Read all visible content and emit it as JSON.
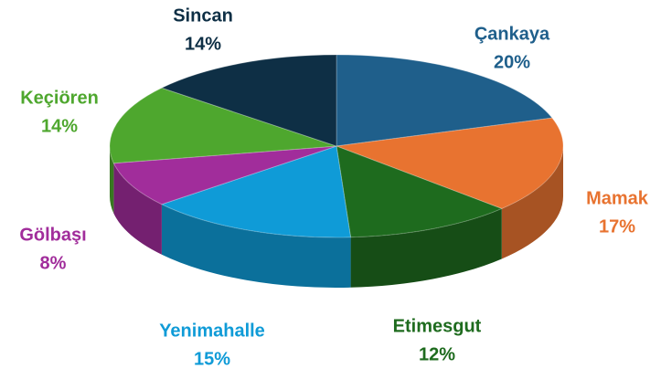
{
  "chart_data": {
    "type": "pie",
    "categories": [
      "Çankaya",
      "Mamak",
      "Etimesgut",
      "Yenimahalle",
      "Gölbaşı",
      "Keçiören",
      "Sincan"
    ],
    "values": [
      20,
      17,
      12,
      15,
      8,
      14,
      14
    ],
    "value_labels": [
      "20%",
      "17%",
      "12%",
      "15%",
      "8%",
      "14%",
      "14%"
    ],
    "colors": [
      "#1f5f8b",
      "#e87330",
      "#1e6b1e",
      "#0f9bd7",
      "#a12d9b",
      "#4ea72e",
      "#0e2f45"
    ]
  }
}
